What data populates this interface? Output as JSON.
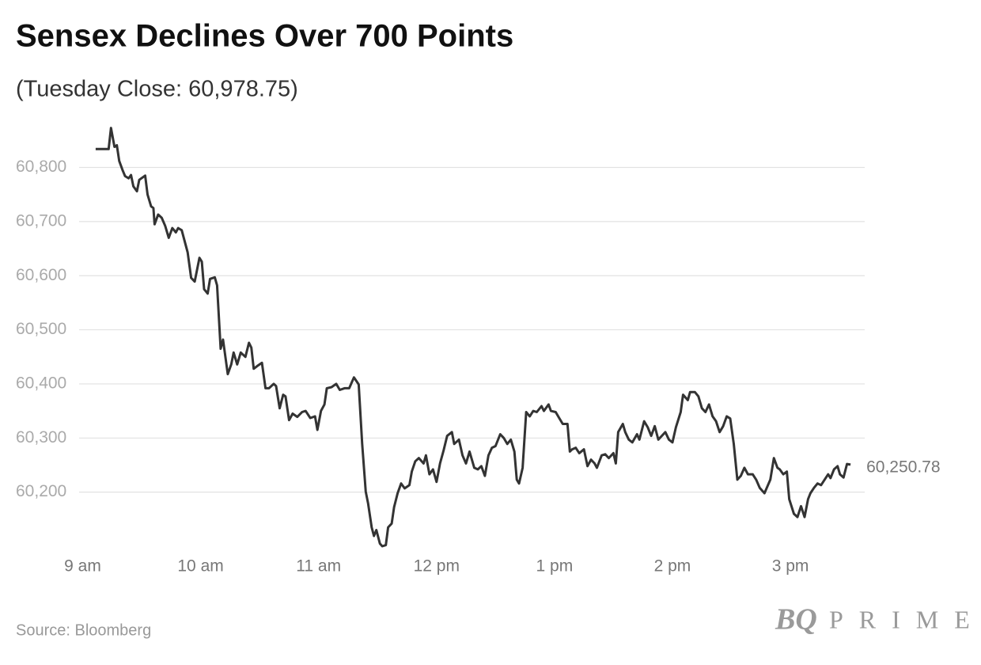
{
  "chart_data": {
    "type": "line",
    "title": "Sensex Declines Over 700 Points",
    "subtitle": "(Tuesday Close: 60,978.75)",
    "source": "Source: Bloomberg",
    "brand": {
      "mark": "BQ",
      "name": "PRIME"
    },
    "end_label": "60,250.78",
    "color": "#333333",
    "grid": true,
    "xlim": [
      8.97,
      15.63
    ],
    "xticks": [
      {
        "value": 9,
        "label": "9 am"
      },
      {
        "value": 10,
        "label": "10 am"
      },
      {
        "value": 11,
        "label": "11 am"
      },
      {
        "value": 12,
        "label": "12 pm"
      },
      {
        "value": 13,
        "label": "1 pm"
      },
      {
        "value": 14,
        "label": "2 pm"
      },
      {
        "value": 15,
        "label": "3 pm"
      }
    ],
    "ylim": [
      60100,
      60890
    ],
    "yticks": [
      {
        "value": 60200,
        "label": "60,200"
      },
      {
        "value": 60300,
        "label": "60,300"
      },
      {
        "value": 60400,
        "label": "60,400"
      },
      {
        "value": 60500,
        "label": "60,500"
      },
      {
        "value": 60600,
        "label": "60,600"
      },
      {
        "value": 60700,
        "label": "60,700"
      },
      {
        "value": 60800,
        "label": "60,800"
      }
    ],
    "x": [
      9.11,
      9.22,
      9.24,
      9.27,
      9.29,
      9.31,
      9.34,
      9.36,
      9.39,
      9.41,
      9.43,
      9.46,
      9.48,
      9.53,
      9.55,
      9.58,
      9.6,
      9.61,
      9.64,
      9.67,
      9.7,
      9.73,
      9.76,
      9.79,
      9.81,
      9.84,
      9.89,
      9.92,
      9.95,
      9.99,
      10.01,
      10.03,
      10.06,
      10.08,
      10.12,
      10.14,
      10.17,
      10.19,
      10.23,
      10.26,
      10.28,
      10.31,
      10.34,
      10.38,
      10.41,
      10.43,
      10.45,
      10.48,
      10.52,
      10.55,
      10.58,
      10.62,
      10.64,
      10.67,
      10.7,
      10.72,
      10.75,
      10.78,
      10.82,
      10.86,
      10.89,
      10.93,
      10.97,
      10.99,
      11.02,
      11.05,
      11.07,
      11.11,
      11.15,
      11.18,
      11.22,
      11.26,
      11.3,
      11.34,
      11.37,
      11.4,
      11.42,
      11.45,
      11.47,
      11.49,
      11.52,
      11.54,
      11.57,
      11.59,
      11.62,
      11.64,
      11.67,
      11.7,
      11.73,
      11.77,
      11.79,
      11.82,
      11.85,
      11.89,
      11.91,
      11.94,
      11.97,
      12.0,
      12.03,
      12.06,
      12.09,
      12.13,
      12.15,
      12.19,
      12.22,
      12.25,
      12.28,
      12.32,
      12.35,
      12.38,
      12.41,
      12.44,
      12.47,
      12.5,
      12.54,
      12.57,
      12.6,
      12.63,
      12.66,
      12.68,
      12.7,
      12.73,
      12.76,
      12.79,
      12.82,
      12.85,
      12.89,
      12.91,
      12.95,
      12.97,
      13.01,
      13.04,
      13.07,
      13.11,
      13.13,
      13.15,
      13.18,
      13.21,
      13.25,
      13.28,
      13.31,
      13.34,
      13.36,
      13.4,
      13.43,
      13.46,
      13.5,
      13.52,
      13.54,
      13.58,
      13.6,
      13.63,
      13.66,
      13.7,
      13.72,
      13.76,
      13.79,
      13.82,
      13.85,
      13.88,
      13.91,
      13.94,
      13.97,
      14.0,
      14.03,
      14.07,
      14.09,
      14.13,
      14.15,
      14.19,
      14.22,
      14.25,
      14.28,
      14.31,
      14.34,
      14.37,
      14.4,
      14.43,
      14.46,
      14.49,
      14.52,
      14.55,
      14.58,
      14.61,
      14.64,
      14.68,
      14.71,
      14.74,
      14.78,
      14.81,
      14.83,
      14.86,
      14.89,
      14.91,
      14.94,
      14.97,
      14.99,
      15.03,
      15.06,
      15.09,
      15.12,
      15.15,
      15.17,
      15.2,
      15.23,
      15.26,
      15.29,
      15.32,
      15.34,
      15.37,
      15.4,
      15.42,
      15.45,
      15.48,
      15.51
    ],
    "values": [
      60834,
      60834,
      60873,
      60838,
      60841,
      60812,
      60794,
      60784,
      60780,
      60786,
      60765,
      60756,
      60777,
      60785,
      60750,
      60728,
      60725,
      60695,
      60713,
      60707,
      60692,
      60670,
      60688,
      60680,
      60688,
      60684,
      60643,
      60596,
      60589,
      60633,
      60626,
      60575,
      60567,
      60594,
      60597,
      60582,
      60465,
      60482,
      60418,
      60436,
      60458,
      60436,
      60458,
      60450,
      60476,
      60467,
      60428,
      60433,
      60439,
      60392,
      60392,
      60400,
      60396,
      60355,
      60380,
      60377,
      60333,
      60345,
      60339,
      60348,
      60350,
      60337,
      60340,
      60315,
      60350,
      60362,
      60392,
      60394,
      60400,
      60389,
      60392,
      60392,
      60412,
      60399,
      60289,
      60201,
      60179,
      60135,
      60119,
      60130,
      60105,
      60100,
      60102,
      60135,
      60142,
      60172,
      60198,
      60216,
      60207,
      60213,
      60238,
      60257,
      60263,
      60253,
      60268,
      60233,
      60242,
      60219,
      60253,
      60277,
      60304,
      60311,
      60289,
      60297,
      60268,
      60253,
      60275,
      60245,
      60242,
      60248,
      60230,
      60268,
      60282,
      60285,
      60307,
      60300,
      60289,
      60297,
      60275,
      60223,
      60216,
      60245,
      60348,
      60340,
      60350,
      60348,
      60359,
      60350,
      60362,
      60350,
      60348,
      60337,
      60326,
      60326,
      60275,
      60279,
      60282,
      60272,
      60279,
      60248,
      60260,
      60253,
      60245,
      60268,
      60270,
      60263,
      60272,
      60253,
      60311,
      60326,
      60311,
      60297,
      60292,
      60307,
      60297,
      60331,
      60320,
      60304,
      60322,
      60297,
      60304,
      60311,
      60297,
      60292,
      60320,
      60348,
      60380,
      60370,
      60385,
      60385,
      60377,
      60355,
      60348,
      60362,
      60340,
      60331,
      60311,
      60322,
      60340,
      60336,
      60289,
      60223,
      60230,
      60245,
      60233,
      60233,
      60223,
      60208,
      60198,
      60213,
      60223,
      60263,
      60245,
      60242,
      60233,
      60238,
      60187,
      60160,
      60154,
      60174,
      60154,
      60187,
      60198,
      60208,
      60216,
      60213,
      60223,
      60233,
      60226,
      60242,
      60248,
      60233,
      60227,
      60252,
      60250.78
    ]
  }
}
